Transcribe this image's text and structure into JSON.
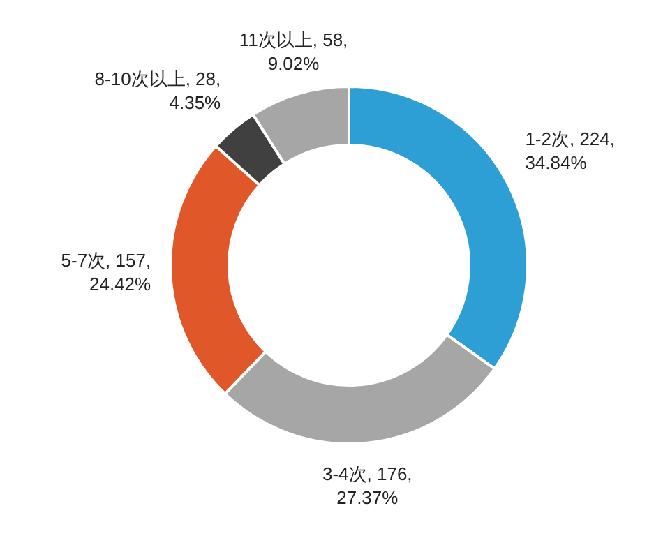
{
  "chart_data": {
    "type": "donut",
    "categories": [
      "1-2次",
      "3-4次",
      "5-7次",
      "8-10次以上",
      "11次以上"
    ],
    "values": [
      224,
      176,
      157,
      28,
      58
    ],
    "value_labels": [
      "224, 34.84%",
      "176, 27.37%",
      "157, 24.42%",
      "28, 4.35%",
      "58, 9.02%"
    ],
    "colors": [
      "#2e9fd4",
      "#a6a6a6",
      "#e0572a",
      "#404040",
      "#a6a6a6"
    ]
  }
}
